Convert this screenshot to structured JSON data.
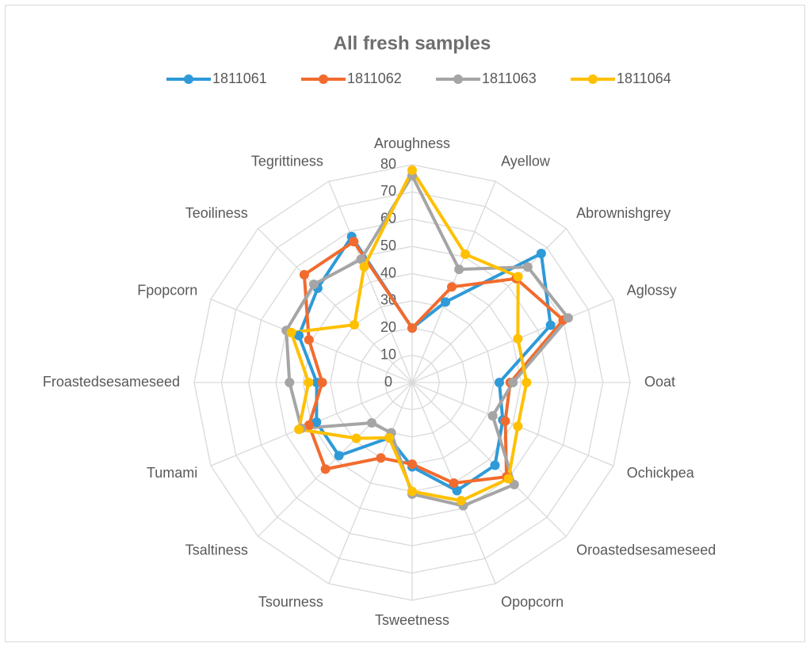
{
  "chart_data": {
    "type": "radar",
    "title": "All fresh samples",
    "categories": [
      "Aroughness",
      "Ayellow",
      "Abrownishgrey",
      "Aglossy",
      "Ooat",
      "Ochickpea",
      "Oroastedsesameseed",
      "Opopcorn",
      "Tsweetness",
      "Tsourness",
      "Tsaltiness",
      "Tumami",
      "Froastedsesameseed",
      "Fpopcorn",
      "Teoiliness",
      "Tegrittiness"
    ],
    "series": [
      {
        "name": "1811061",
        "color": "#2E9AD8",
        "values": [
          20,
          32,
          67,
          55,
          32,
          36,
          43,
          43,
          31,
          22,
          38,
          38,
          35,
          45,
          49,
          58
        ]
      },
      {
        "name": "1811062",
        "color": "#F26B2E",
        "values": [
          20,
          38,
          54,
          60,
          36,
          37,
          49,
          40,
          30,
          30,
          45,
          41,
          33,
          41,
          56,
          56
        ]
      },
      {
        "name": "1811063",
        "color": "#A5A5A5",
        "values": [
          76,
          45,
          60,
          62,
          37,
          32,
          53,
          49,
          41,
          20,
          21,
          44,
          45,
          50,
          51,
          49
        ]
      },
      {
        "name": "1811064",
        "color": "#FFC000",
        "values": [
          78,
          51,
          55,
          42,
          42,
          42,
          50,
          47,
          40,
          22,
          29,
          45,
          38,
          48,
          30,
          46
        ]
      }
    ],
    "ylim": [
      0,
      80
    ],
    "yticks": [
      0,
      10,
      20,
      30,
      40,
      50,
      60,
      70,
      80
    ],
    "grid": true,
    "legend": "top"
  }
}
